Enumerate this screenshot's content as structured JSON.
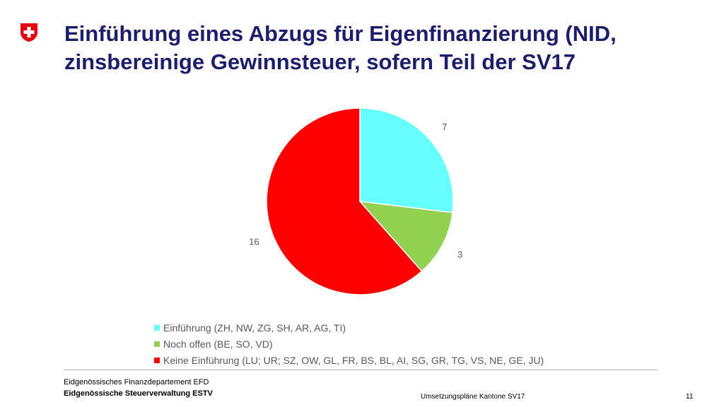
{
  "header": {
    "title_line1": "Einführung eines Abzugs für Eigenfinanzierung (NID,",
    "title_line2": "zinsbereinige Gewinnsteuer, sofern Teil der SV17"
  },
  "colors": {
    "title": "#1d1d6b",
    "logo_red": "#e3000f",
    "cyan": "#66ffff",
    "green": "#92d050",
    "red": "#ff0000"
  },
  "chart_data": {
    "type": "pie",
    "title": "",
    "start_angle_deg": 0,
    "direction": "clockwise",
    "slices": [
      {
        "label": "Einführung (ZH, NW, ZG, SH, AR, AG, TI)",
        "value": 7,
        "color": "#66ffff"
      },
      {
        "label": "Noch offen (BE, SO, VD)",
        "value": 3,
        "color": "#92d050"
      },
      {
        "label": "Keine Einführung (LU; UR; SZ, OW, GL, FR, BS, BL, AI, SG, GR, TG, VS, NE, GE, JU)",
        "value": 16,
        "color": "#ff0000"
      }
    ],
    "legend_position": "bottom"
  },
  "footer": {
    "department": "Eidgenössisches Finanzdepartement EFD",
    "office": "Eidgenössische Steuerverwaltung ESTV",
    "doc_title": "Umsetzungspläne Kantone SV17",
    "page_number": "11"
  }
}
